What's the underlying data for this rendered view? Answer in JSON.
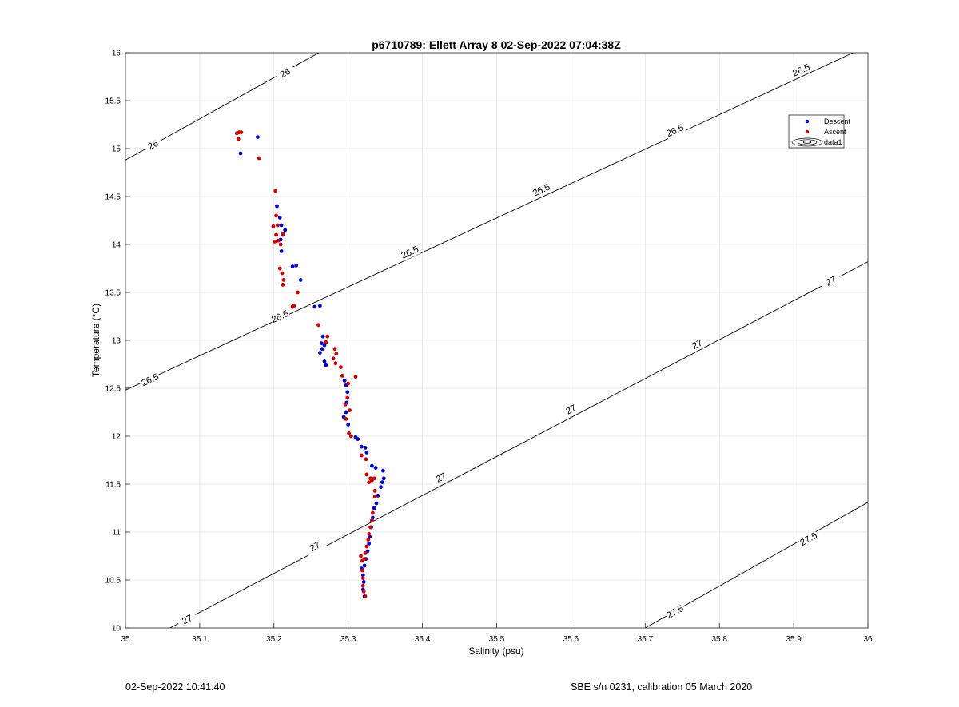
{
  "chart_data": {
    "type": "scatter",
    "title": "p6710789: Ellett Array 8 02-Sep-2022 07:04:38Z",
    "xlabel": "Salinity (psu)",
    "ylabel": "Temperature (°C)",
    "xlim": [
      35,
      36
    ],
    "ylim": [
      10,
      16
    ],
    "grid": true,
    "legend_position": "top-right",
    "x_ticks": [
      "35",
      "35.1",
      "35.2",
      "35.3",
      "35.4",
      "35.5",
      "35.6",
      "35.7",
      "35.8",
      "35.9",
      "36"
    ],
    "y_ticks": [
      "10",
      "10.5",
      "11",
      "11.5",
      "12",
      "12.5",
      "13",
      "13.5",
      "14",
      "14.5",
      "15",
      "15.5",
      "16"
    ],
    "legend": [
      "Descent",
      "Ascent",
      "data1"
    ],
    "series": [
      {
        "name": "Descent",
        "color": "#0000cc",
        "points": [
          [
            35.178,
            15.12
          ],
          [
            35.155,
            14.95
          ],
          [
            35.204,
            14.4
          ],
          [
            35.208,
            14.28
          ],
          [
            35.21,
            14.2
          ],
          [
            35.215,
            14.15
          ],
          [
            35.212,
            14.1
          ],
          [
            35.209,
            14.05
          ],
          [
            35.21,
            13.93
          ],
          [
            35.225,
            13.77
          ],
          [
            35.23,
            13.78
          ],
          [
            35.236,
            13.63
          ],
          [
            35.255,
            13.35
          ],
          [
            35.262,
            13.36
          ],
          [
            35.266,
            13.04
          ],
          [
            35.264,
            12.97
          ],
          [
            35.265,
            12.91
          ],
          [
            35.268,
            12.95
          ],
          [
            35.262,
            12.87
          ],
          [
            35.268,
            12.78
          ],
          [
            35.27,
            12.74
          ],
          [
            35.295,
            12.58
          ],
          [
            35.297,
            12.53
          ],
          [
            35.299,
            12.46
          ],
          [
            35.298,
            12.35
          ],
          [
            35.297,
            12.25
          ],
          [
            35.294,
            12.2
          ],
          [
            35.3,
            12.12
          ],
          [
            35.31,
            11.99
          ],
          [
            35.313,
            11.97
          ],
          [
            35.318,
            11.89
          ],
          [
            35.323,
            11.88
          ],
          [
            35.325,
            11.83
          ],
          [
            35.332,
            11.69
          ],
          [
            35.337,
            11.67
          ],
          [
            35.347,
            11.64
          ],
          [
            35.348,
            11.56
          ],
          [
            35.346,
            11.52
          ],
          [
            35.344,
            11.47
          ],
          [
            35.34,
            11.38
          ],
          [
            35.338,
            11.3
          ],
          [
            35.335,
            11.25
          ],
          [
            35.333,
            11.15
          ],
          [
            35.331,
            11.05
          ],
          [
            35.329,
            10.95
          ],
          [
            35.328,
            10.88
          ],
          [
            35.326,
            10.8
          ],
          [
            35.324,
            10.72
          ],
          [
            35.322,
            10.65
          ],
          [
            35.318,
            10.62
          ],
          [
            35.32,
            10.55
          ],
          [
            35.321,
            10.48
          ],
          [
            35.32,
            10.4
          ],
          [
            35.322,
            10.33
          ]
        ]
      },
      {
        "name": "Ascent",
        "color": "#cc0000",
        "points": [
          [
            35.15,
            15.16
          ],
          [
            35.153,
            15.17
          ],
          [
            35.156,
            15.17
          ],
          [
            35.152,
            15.1
          ],
          [
            35.18,
            14.9
          ],
          [
            35.202,
            14.56
          ],
          [
            35.203,
            14.3
          ],
          [
            35.205,
            14.2
          ],
          [
            35.199,
            14.19
          ],
          [
            35.203,
            14.1
          ],
          [
            35.206,
            14.04
          ],
          [
            35.201,
            14.03
          ],
          [
            35.209,
            14.0
          ],
          [
            35.212,
            14.11
          ],
          [
            35.208,
            13.75
          ],
          [
            35.211,
            13.7
          ],
          [
            35.213,
            13.63
          ],
          [
            35.212,
            13.58
          ],
          [
            35.232,
            13.5
          ],
          [
            35.227,
            13.36
          ],
          [
            35.225,
            13.35
          ],
          [
            35.26,
            13.16
          ],
          [
            35.272,
            13.04
          ],
          [
            35.27,
            12.98
          ],
          [
            35.282,
            12.91
          ],
          [
            35.284,
            12.86
          ],
          [
            35.28,
            12.81
          ],
          [
            35.283,
            12.76
          ],
          [
            35.29,
            12.72
          ],
          [
            35.292,
            12.63
          ],
          [
            35.3,
            12.55
          ],
          [
            35.31,
            12.62
          ],
          [
            35.299,
            12.4
          ],
          [
            35.296,
            12.33
          ],
          [
            35.302,
            12.27
          ],
          [
            35.297,
            12.18
          ],
          [
            35.301,
            12.03
          ],
          [
            35.304,
            12.0
          ],
          [
            35.318,
            11.8
          ],
          [
            35.324,
            11.76
          ],
          [
            35.325,
            11.6
          ],
          [
            35.33,
            11.56
          ],
          [
            35.335,
            11.56
          ],
          [
            35.332,
            11.54
          ],
          [
            35.328,
            11.52
          ],
          [
            35.336,
            11.43
          ],
          [
            35.336,
            11.37
          ],
          [
            35.333,
            11.2
          ],
          [
            35.332,
            11.12
          ],
          [
            35.33,
            11.05
          ],
          [
            35.328,
            10.98
          ],
          [
            35.327,
            10.92
          ],
          [
            35.325,
            10.85
          ],
          [
            35.323,
            10.78
          ],
          [
            35.322,
            10.72
          ],
          [
            35.319,
            10.7
          ],
          [
            35.317,
            10.75
          ],
          [
            35.319,
            10.6
          ],
          [
            35.32,
            10.52
          ],
          [
            35.32,
            10.44
          ],
          [
            35.321,
            10.38
          ],
          [
            35.323,
            10.33
          ]
        ]
      }
    ],
    "contours": [
      {
        "level": "26",
        "points": [
          [
            35.0,
            14.88
          ],
          [
            35.4,
            16.6
          ]
        ],
        "labels": [
          [
            35.037,
            15.04
          ],
          [
            35.215,
            15.79
          ]
        ]
      },
      {
        "level": "26.5",
        "points": [
          [
            35.0,
            12.48
          ],
          [
            35.98,
            16.0
          ],
          [
            36.1,
            16.4
          ]
        ],
        "labels": [
          [
            35.033,
            12.59
          ],
          [
            35.208,
            13.25
          ],
          [
            35.383,
            13.92
          ],
          [
            35.56,
            14.57
          ],
          [
            35.74,
            15.19
          ],
          [
            35.91,
            15.82
          ]
        ]
      },
      {
        "level": "27",
        "points": [
          [
            35.06,
            10.0
          ],
          [
            36.0,
            13.82
          ]
        ],
        "labels": [
          [
            35.083,
            10.09
          ],
          [
            35.255,
            10.85
          ],
          [
            35.425,
            11.57
          ],
          [
            35.6,
            12.28
          ],
          [
            35.77,
            12.96
          ],
          [
            35.95,
            13.62
          ]
        ]
      },
      {
        "level": "27.5",
        "points": [
          [
            35.7,
            10.0
          ],
          [
            36.0,
            11.31
          ]
        ],
        "labels": [
          [
            35.74,
            10.17
          ],
          [
            35.92,
            10.93
          ]
        ]
      }
    ]
  },
  "footer": {
    "left": "02-Sep-2022 10:41:40",
    "right": "SBE s/n 0231, calibration 05 March 2020"
  }
}
